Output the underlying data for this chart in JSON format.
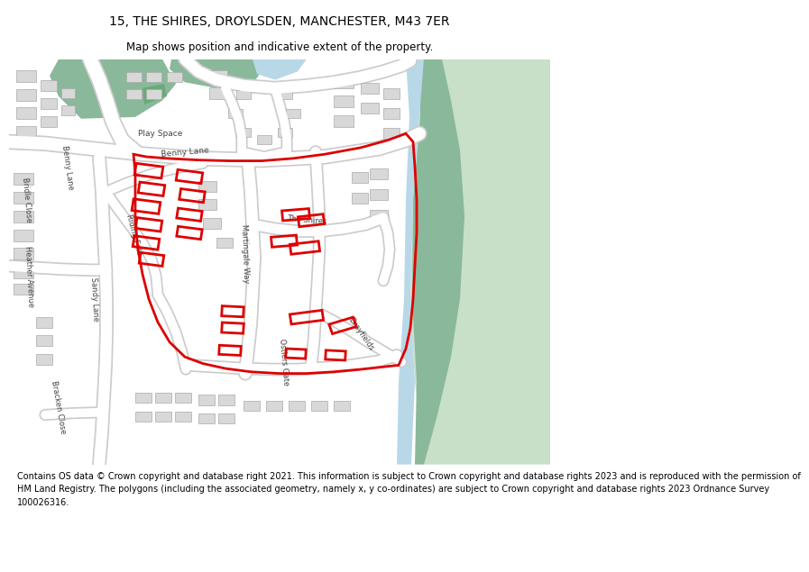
{
  "title": "15, THE SHIRES, DROYLSDEN, MANCHESTER, M43 7ER",
  "subtitle": "Map shows position and indicative extent of the property.",
  "footer_lines": [
    "Contains OS data © Crown copyright and database right 2021. This information is subject to Crown copyright and database rights 2023 and is reproduced with the permission of",
    "HM Land Registry. The polygons (including the associated geometry, namely x, y co-ordinates) are subject to Crown copyright and database rights 2023 Ordnance Survey",
    "100026316."
  ],
  "map_bg": "#ffffff",
  "green_dark": "#8ab89a",
  "green_light": "#c8dfc8",
  "blue_water": "#b8d8e8",
  "road_color": "#ffffff",
  "road_outline": "#cccccc",
  "building_color": "#d8d8d8",
  "building_outline": "#aaaaaa",
  "red_color": "#dd0000",
  "title_fontsize": 10,
  "subtitle_fontsize": 8.5,
  "footer_fontsize": 7.0
}
